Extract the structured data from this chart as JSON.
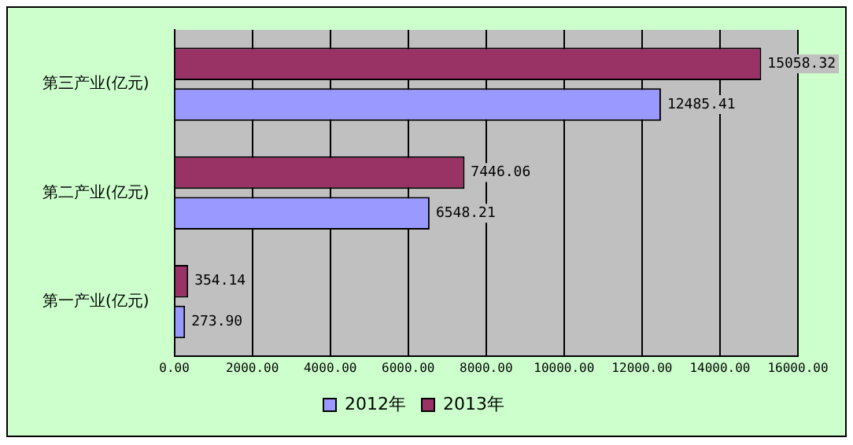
{
  "chart_data": {
    "type": "bar",
    "orientation": "horizontal",
    "categories": [
      "第三产业(亿元)",
      "第二产业(亿元)",
      "第一产业(亿元)"
    ],
    "series": [
      {
        "name": "2012年",
        "color": "#9999ff",
        "values": [
          12485.41,
          6548.21,
          273.9
        ],
        "value_labels": [
          "12485.41",
          "6548.21",
          "273.90"
        ]
      },
      {
        "name": "2013年",
        "color": "#993366",
        "values": [
          15058.32,
          7446.06,
          354.14
        ],
        "value_labels": [
          "15058.32",
          "7446.06",
          "354.14"
        ]
      }
    ],
    "xlim": [
      0,
      16000
    ],
    "xticks": [
      {
        "value": 0,
        "label": "0.00"
      },
      {
        "value": 2000,
        "label": "2000.00"
      },
      {
        "value": 4000,
        "label": "4000.00"
      },
      {
        "value": 6000,
        "label": "6000.00"
      },
      {
        "value": 8000,
        "label": "8000.00"
      },
      {
        "value": 10000,
        "label": "10000.00"
      },
      {
        "value": 12000,
        "label": "12000.00"
      },
      {
        "value": 14000,
        "label": "14000.00"
      },
      {
        "value": 16000,
        "label": "16000.00"
      }
    ],
    "grid": "x",
    "legend": "bottom"
  }
}
